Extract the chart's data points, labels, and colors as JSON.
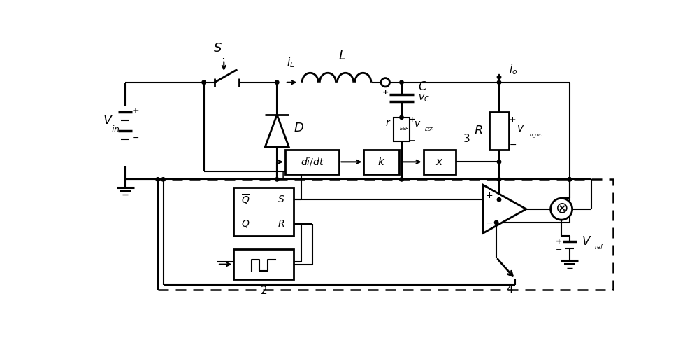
{
  "bg": "#ffffff",
  "lc": "#000000",
  "figsize": [
    10.0,
    5.13
  ],
  "dpi": 100
}
